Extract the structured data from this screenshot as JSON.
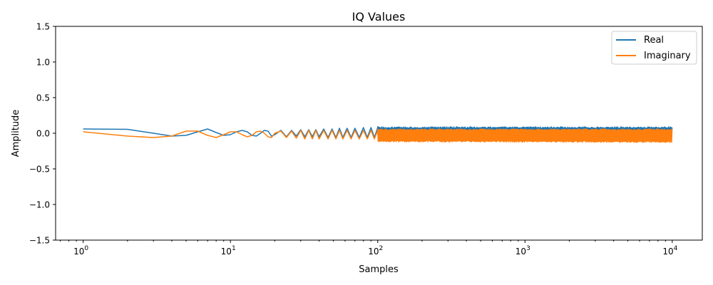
{
  "chart_data": {
    "type": "line",
    "title": "IQ Values",
    "xlabel": "Samples",
    "ylabel": "Amplitude",
    "xscale": "log",
    "xlim": [
      0.65,
      16000
    ],
    "ylim": [
      -1.5,
      1.5
    ],
    "grid": false,
    "legend": "upper right",
    "yticks": [
      -1.5,
      -1.0,
      -0.5,
      0.0,
      0.5,
      1.0,
      1.5
    ],
    "ytick_labels": [
      "−1.5",
      "−1.0",
      "−0.5",
      "0.0",
      "0.5",
      "1.0",
      "1.5"
    ],
    "xticks": [
      {
        "value": 1,
        "base": "10",
        "exp": "0"
      },
      {
        "value": 10,
        "base": "10",
        "exp": "1"
      },
      {
        "value": 100,
        "base": "10",
        "exp": "2"
      },
      {
        "value": 1000,
        "base": "10",
        "exp": "3"
      },
      {
        "value": 10000,
        "base": "10",
        "exp": "4"
      }
    ],
    "series": [
      {
        "name": "Real",
        "color": "#1f77b4",
        "points": [
          [
            1,
            0.06
          ],
          [
            2,
            0.055
          ],
          [
            3,
            0.0
          ],
          [
            4,
            -0.04
          ],
          [
            5,
            -0.03
          ],
          [
            6,
            0.02
          ],
          [
            7,
            0.06
          ],
          [
            8,
            0.01
          ],
          [
            9,
            -0.03
          ],
          [
            10,
            -0.02
          ],
          [
            11,
            0.02
          ],
          [
            12,
            0.04
          ],
          [
            13,
            0.02
          ],
          [
            14,
            -0.03
          ],
          [
            15,
            -0.04
          ],
          [
            16,
            0.0
          ],
          [
            17,
            0.04
          ],
          [
            18,
            0.03
          ],
          [
            19,
            -0.04
          ],
          [
            20,
            -0.02
          ],
          [
            22,
            0.04
          ],
          [
            24,
            -0.05
          ],
          [
            26,
            0.04
          ],
          [
            28,
            -0.04
          ],
          [
            30,
            0.05
          ],
          [
            32,
            -0.05
          ],
          [
            34,
            0.05
          ],
          [
            36,
            -0.05
          ],
          [
            38,
            0.05
          ],
          [
            40,
            -0.05
          ],
          [
            43,
            0.06
          ],
          [
            46,
            -0.06
          ],
          [
            49,
            0.06
          ],
          [
            52,
            -0.06
          ],
          [
            55,
            0.07
          ],
          [
            58,
            -0.06
          ],
          [
            62,
            0.07
          ],
          [
            66,
            -0.06
          ],
          [
            70,
            0.07
          ],
          [
            75,
            -0.06
          ],
          [
            80,
            0.08
          ],
          [
            85,
            -0.06
          ],
          [
            90,
            0.08
          ],
          [
            95,
            -0.06
          ],
          [
            100,
            0.08
          ]
        ],
        "dense_band": {
          "x_range": [
            100,
            10000
          ],
          "low": -0.06,
          "high": 0.09
        }
      },
      {
        "name": "Imaginary",
        "color": "#ff7f0e",
        "points": [
          [
            1,
            0.02
          ],
          [
            2,
            -0.04
          ],
          [
            3,
            -0.06
          ],
          [
            4,
            -0.04
          ],
          [
            5,
            0.03
          ],
          [
            6,
            0.03
          ],
          [
            7,
            -0.03
          ],
          [
            8,
            -0.06
          ],
          [
            9,
            -0.02
          ],
          [
            10,
            0.02
          ],
          [
            11,
            0.02
          ],
          [
            12,
            -0.02
          ],
          [
            13,
            -0.05
          ],
          [
            14,
            -0.03
          ],
          [
            15,
            0.02
          ],
          [
            16,
            0.03
          ],
          [
            17,
            0.0
          ],
          [
            18,
            -0.05
          ],
          [
            19,
            -0.06
          ],
          [
            20,
            0.0
          ],
          [
            22,
            0.03
          ],
          [
            24,
            -0.06
          ],
          [
            26,
            0.03
          ],
          [
            28,
            -0.07
          ],
          [
            30,
            0.04
          ],
          [
            32,
            -0.08
          ],
          [
            34,
            0.04
          ],
          [
            36,
            -0.08
          ],
          [
            38,
            0.04
          ],
          [
            40,
            -0.08
          ],
          [
            43,
            0.04
          ],
          [
            46,
            -0.08
          ],
          [
            49,
            0.04
          ],
          [
            52,
            -0.08
          ],
          [
            55,
            0.04
          ],
          [
            58,
            -0.08
          ],
          [
            62,
            0.04
          ],
          [
            66,
            -0.08
          ],
          [
            70,
            0.04
          ],
          [
            75,
            -0.08
          ],
          [
            80,
            0.04
          ],
          [
            85,
            -0.08
          ],
          [
            90,
            0.04
          ],
          [
            95,
            -0.08
          ],
          [
            100,
            0.04
          ]
        ],
        "dense_band": {
          "x_range": [
            100,
            10000
          ],
          "low": -0.12,
          "high": 0.06
        }
      }
    ]
  }
}
